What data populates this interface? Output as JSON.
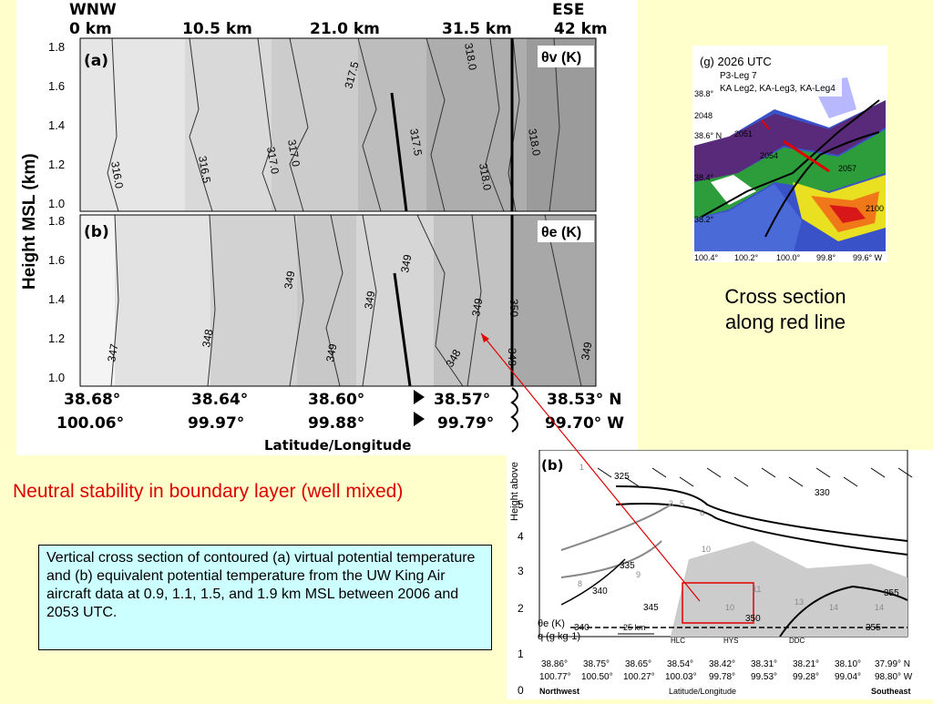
{
  "panel_top": {
    "dir_left": "WNW",
    "dir_right": "ESE",
    "distances": [
      "0 km",
      "10.5 km",
      "21.0 km",
      "31.5 km",
      "42 km"
    ],
    "ylabel": "Height MSL (km)",
    "yticks": [
      "1.8",
      "1.6",
      "1.4",
      "1.2",
      "1.0"
    ],
    "a_label": "(a)",
    "a_var": "θv (K)",
    "a_contours": [
      "316.0",
      "316.5",
      "317.0",
      "317.0",
      "317.5",
      "317.5",
      "318.0",
      "318.0",
      "318.0"
    ],
    "b_label": "(b)",
    "b_var": "θe (K)",
    "b_contours": [
      "347",
      "348",
      "349",
      "349",
      "349",
      "349",
      "349",
      "348",
      "350",
      "349",
      "349"
    ],
    "lat_labels": [
      "38.68°",
      "38.64°",
      "38.60°",
      "38.57°",
      "38.53° N"
    ],
    "lon_labels": [
      "100.06°",
      "99.97°",
      "99.88°",
      "99.79°",
      "99.70° W"
    ],
    "xlabel": "Latitude/Longitude"
  },
  "map": {
    "panel": "(g) 2026 UTC",
    "leg1": "P3-Leg 7",
    "leg2": "KA Leg2, KA-Leg3, KA-Leg4",
    "lat_ticks": [
      "38.8°",
      "38.6° N",
      "38.4°",
      "38.2°"
    ],
    "lon_ticks": [
      "100.4°",
      "100.2°",
      "100.0°",
      "99.8°",
      "99.6° W"
    ],
    "times": [
      "2048",
      "2051",
      "2054",
      "2057",
      "2100"
    ]
  },
  "side_caption": "Cross section along red line",
  "stability_note": "Neutral stability in boundary layer (well mixed)",
  "description": "Vertical cross section of contoured (a) virtual potential temperature and (b) equivalent potential temperature from the UW King Air aircraft data at 0.9, 1.1, 1.5, and 1.9 km MSL between 2006 and 2053 UTC.",
  "panel_b": {
    "label": "(b)",
    "ylabel": "Height above",
    "yticks": [
      "5",
      "4",
      "3",
      "2",
      "1",
      "0"
    ],
    "contours": [
      "325",
      "330",
      "335",
      "340",
      "345",
      "350",
      "355",
      "355",
      "340"
    ],
    "q_labels": [
      "1",
      "3",
      "5",
      "6",
      "10",
      "8",
      "9",
      "10",
      "11",
      "13",
      "14",
      "14"
    ],
    "legend_theta": "θe (K)",
    "legend_q": "q (g kg-1)",
    "scale": "25 km",
    "stations": [
      "HLC",
      "HYS",
      "DDC"
    ],
    "lat_labels": [
      "38.86°",
      "38.75°",
      "38.65°",
      "38.54°",
      "38.42°",
      "38.31°",
      "38.21°",
      "38.10°",
      "37.99° N"
    ],
    "lon_labels": [
      "100.77°",
      "100.50°",
      "100.27°",
      "100.03°",
      "99.78°",
      "99.53°",
      "99.28°",
      "99.04°",
      "98.80° W"
    ],
    "left_end": "Northwest",
    "right_end": "Southeast",
    "xlabel": "Latitude/Longitude"
  }
}
